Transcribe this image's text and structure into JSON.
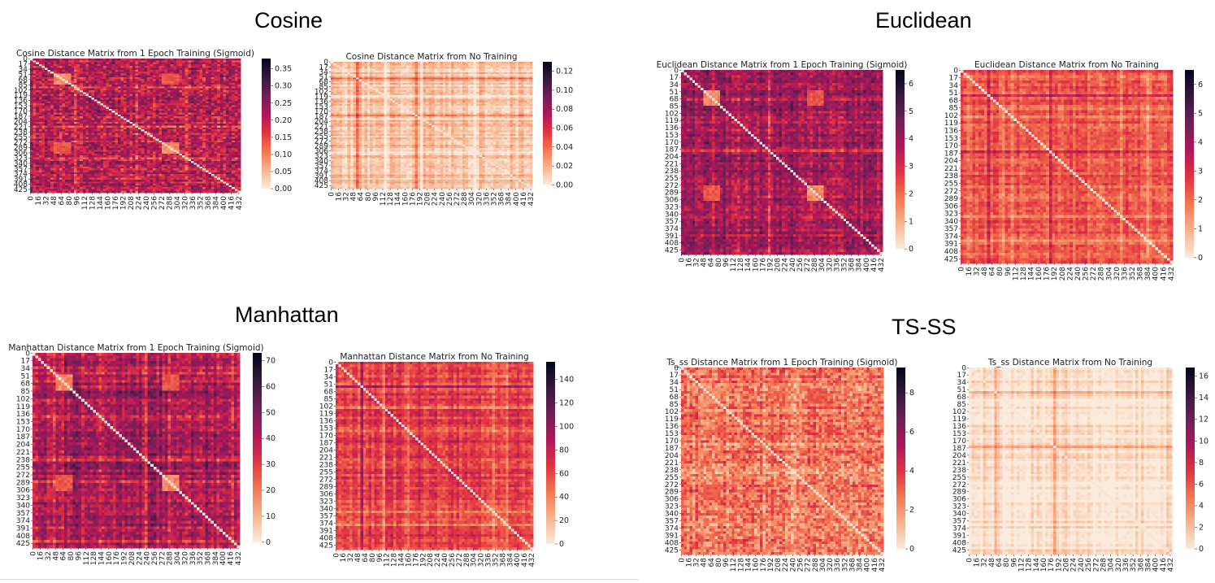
{
  "groups": [
    {
      "title": "Cosine"
    },
    {
      "title": "Euclidean"
    },
    {
      "title": "Manhattan"
    },
    {
      "title": "TS-SS"
    }
  ],
  "colormap": "rocket",
  "colormap_stops": [
    "#faebdd",
    "#f6b48e",
    "#f37651",
    "#e13342",
    "#ad1759",
    "#701f57",
    "#35193e",
    "#03051a"
  ],
  "chart_data": [
    {
      "type": "heatmap",
      "title": "Cosine Distance Matrix from 1 Epoch Training (Sigmoid)",
      "n": 436,
      "y_ticks": [
        0,
        17,
        34,
        51,
        68,
        85,
        102,
        119,
        136,
        153,
        170,
        187,
        204,
        221,
        238,
        255,
        272,
        289,
        306,
        323,
        340,
        357,
        374,
        391,
        408,
        425
      ],
      "x_ticks": [
        0,
        16,
        32,
        48,
        64,
        80,
        96,
        112,
        128,
        144,
        160,
        176,
        192,
        208,
        224,
        240,
        256,
        272,
        288,
        304,
        320,
        336,
        352,
        368,
        384,
        400,
        416,
        432
      ],
      "colorbar": {
        "ticks": [
          "0.00",
          "0.05",
          "0.10",
          "0.15",
          "0.20",
          "0.25",
          "0.30",
          "0.35"
        ],
        "min": 0,
        "max": 0.38
      },
      "texture": {
        "level": 0.55,
        "var": 0.32,
        "rowvar": 0.12,
        "light_block": true,
        "seed": 11
      }
    },
    {
      "type": "heatmap",
      "title": "Cosine Distance Matrix from No Training",
      "n": 436,
      "y_ticks": [
        0,
        17,
        34,
        51,
        68,
        85,
        102,
        119,
        136,
        153,
        170,
        187,
        204,
        221,
        238,
        255,
        272,
        289,
        306,
        323,
        340,
        357,
        374,
        391,
        408,
        425
      ],
      "x_ticks": [
        0,
        16,
        32,
        48,
        64,
        80,
        96,
        112,
        128,
        144,
        160,
        176,
        192,
        208,
        224,
        240,
        256,
        272,
        288,
        304,
        320,
        336,
        352,
        368,
        384,
        400,
        416,
        432
      ],
      "colorbar": {
        "ticks": [
          "0.00",
          "0.02",
          "0.04",
          "0.06",
          "0.08",
          "0.10",
          "0.12"
        ],
        "min": 0,
        "max": 0.13
      },
      "texture": {
        "level": 0.1,
        "var": 0.1,
        "rowvar": 0.12,
        "light_block": false,
        "seed": 23
      }
    },
    {
      "type": "heatmap",
      "title": "Euclidean Distance Matrix from 1 Epoch Training (Sigmoid)",
      "n": 436,
      "y_ticks": [
        0,
        17,
        34,
        51,
        68,
        85,
        102,
        119,
        136,
        153,
        170,
        187,
        204,
        221,
        238,
        255,
        272,
        289,
        306,
        323,
        340,
        357,
        374,
        391,
        408,
        425
      ],
      "x_ticks": [
        0,
        16,
        32,
        48,
        64,
        80,
        96,
        112,
        128,
        144,
        160,
        176,
        192,
        208,
        224,
        240,
        256,
        272,
        288,
        304,
        320,
        336,
        352,
        368,
        384,
        400,
        416,
        432
      ],
      "colorbar": {
        "ticks": [
          "0",
          "1",
          "2",
          "3",
          "4",
          "5",
          "6"
        ],
        "min": 0,
        "max": 6.5
      },
      "texture": {
        "level": 0.6,
        "var": 0.22,
        "rowvar": 0.15,
        "light_block": true,
        "seed": 37
      }
    },
    {
      "type": "heatmap",
      "title": "Euclidean Distance Matrix from No Training",
      "n": 436,
      "y_ticks": [
        0,
        17,
        34,
        51,
        68,
        85,
        102,
        119,
        136,
        153,
        170,
        187,
        204,
        221,
        238,
        255,
        272,
        289,
        306,
        323,
        340,
        357,
        374,
        391,
        408,
        425
      ],
      "x_ticks": [
        0,
        16,
        32,
        48,
        64,
        80,
        96,
        112,
        128,
        144,
        160,
        176,
        192,
        208,
        224,
        240,
        256,
        272,
        288,
        304,
        320,
        336,
        352,
        368,
        384,
        400,
        416,
        432
      ],
      "colorbar": {
        "ticks": [
          "0",
          "1",
          "2",
          "3",
          "4",
          "5",
          "6"
        ],
        "min": 0,
        "max": 6.5
      },
      "texture": {
        "level": 0.35,
        "var": 0.14,
        "rowvar": 0.12,
        "light_block": false,
        "seed": 41
      }
    },
    {
      "type": "heatmap",
      "title": "Manhattan Distance Matrix from 1 Epoch Training (Sigmoid)",
      "n": 436,
      "y_ticks": [
        0,
        17,
        34,
        51,
        68,
        85,
        102,
        119,
        136,
        153,
        170,
        187,
        204,
        221,
        238,
        255,
        272,
        289,
        306,
        323,
        340,
        357,
        374,
        391,
        408,
        425
      ],
      "x_ticks": [
        0,
        16,
        32,
        48,
        64,
        80,
        96,
        112,
        128,
        144,
        160,
        176,
        192,
        208,
        224,
        240,
        256,
        272,
        288,
        304,
        320,
        336,
        352,
        368,
        384,
        400,
        416,
        432
      ],
      "colorbar": {
        "ticks": [
          "0",
          "10",
          "20",
          "30",
          "40",
          "50",
          "60",
          "70"
        ],
        "min": 0,
        "max": 73
      },
      "texture": {
        "level": 0.6,
        "var": 0.22,
        "rowvar": 0.15,
        "light_block": true,
        "seed": 53
      }
    },
    {
      "type": "heatmap",
      "title": "Manhattan Distance Matrix from No Training",
      "n": 436,
      "y_ticks": [
        0,
        17,
        34,
        51,
        68,
        85,
        102,
        119,
        136,
        153,
        170,
        187,
        204,
        221,
        238,
        255,
        272,
        289,
        306,
        323,
        340,
        357,
        374,
        391,
        408,
        425
      ],
      "x_ticks": [
        0,
        16,
        32,
        48,
        64,
        80,
        96,
        112,
        128,
        144,
        160,
        176,
        192,
        208,
        224,
        240,
        256,
        272,
        288,
        304,
        320,
        336,
        352,
        368,
        384,
        400,
        416,
        432
      ],
      "colorbar": {
        "ticks": [
          "0",
          "20",
          "40",
          "60",
          "80",
          "100",
          "120",
          "140"
        ],
        "min": 0,
        "max": 155
      },
      "texture": {
        "level": 0.42,
        "var": 0.14,
        "rowvar": 0.12,
        "light_block": false,
        "seed": 67
      }
    },
    {
      "type": "heatmap",
      "title": "Ts_ss Distance Matrix from 1 Epoch Training (Sigmoid)",
      "n": 436,
      "y_ticks": [
        0,
        17,
        34,
        51,
        68,
        85,
        102,
        119,
        136,
        153,
        170,
        187,
        204,
        221,
        238,
        255,
        272,
        289,
        306,
        323,
        340,
        357,
        374,
        391,
        408,
        425
      ],
      "x_ticks": [
        0,
        16,
        32,
        48,
        64,
        80,
        96,
        112,
        128,
        144,
        160,
        176,
        192,
        208,
        224,
        240,
        256,
        272,
        288,
        304,
        320,
        336,
        352,
        368,
        384,
        400,
        416,
        432
      ],
      "colorbar": {
        "ticks": [
          "0",
          "2",
          "4",
          "6",
          "8"
        ],
        "min": 0,
        "max": 9.3
      },
      "texture": {
        "level": 0.3,
        "var": 0.28,
        "rowvar": 0.1,
        "light_block": true,
        "seed": 79
      }
    },
    {
      "type": "heatmap",
      "title": "Ts_ss Distance Matrix from No Training",
      "n": 436,
      "y_ticks": [
        0,
        17,
        34,
        51,
        68,
        85,
        102,
        119,
        136,
        153,
        170,
        187,
        204,
        221,
        238,
        255,
        272,
        289,
        306,
        323,
        340,
        357,
        374,
        391,
        408,
        425
      ],
      "x_ticks": [
        0,
        16,
        32,
        48,
        64,
        80,
        96,
        112,
        128,
        144,
        160,
        176,
        192,
        208,
        224,
        240,
        256,
        272,
        288,
        304,
        320,
        336,
        352,
        368,
        384,
        400,
        416,
        432
      ],
      "colorbar": {
        "ticks": [
          "0",
          "2",
          "4",
          "6",
          "8",
          "10",
          "12",
          "14",
          "16"
        ],
        "min": 0,
        "max": 16.8
      },
      "texture": {
        "level": 0.05,
        "var": 0.06,
        "rowvar": 0.1,
        "light_block": false,
        "seed": 83
      }
    }
  ]
}
